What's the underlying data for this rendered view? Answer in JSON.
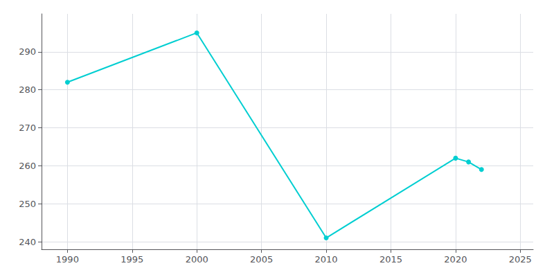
{
  "chart_data": {
    "type": "line",
    "x": [
      1990,
      2000,
      2010,
      2020,
      2021,
      2022
    ],
    "values": [
      282,
      295,
      241,
      262,
      261,
      259
    ],
    "color": "#00CED1",
    "marker": "circle",
    "xlim": [
      1988,
      2026
    ],
    "ylim": [
      238,
      300
    ],
    "xticks": [
      1990,
      1995,
      2000,
      2005,
      2010,
      2015,
      2020,
      2025
    ],
    "yticks": [
      240,
      250,
      260,
      270,
      280,
      290
    ],
    "grid": true
  }
}
